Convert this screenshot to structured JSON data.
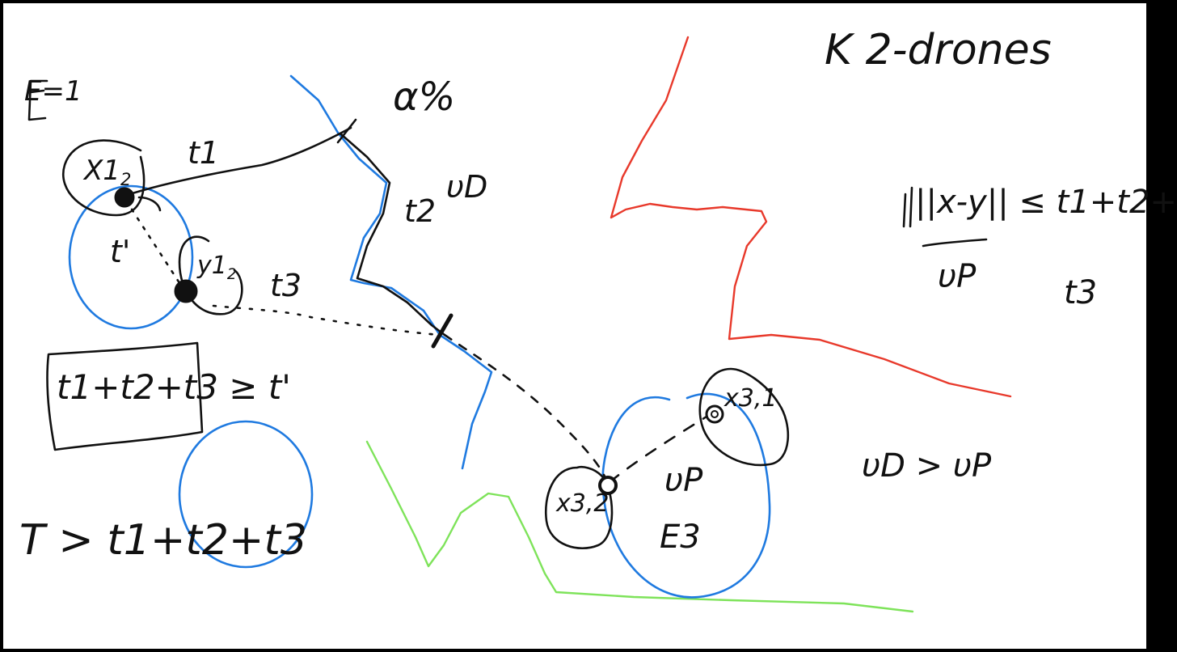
{
  "colors": {
    "ink": "#111111",
    "blue": "#1f7ae0",
    "red": "#e8392b",
    "green": "#7ee35a",
    "background": "#ffffff"
  },
  "labels": {
    "title": "K 2-drones",
    "e1": "E=1",
    "alpha": "α%",
    "vD": "υD",
    "x1": "X1",
    "x1_sub": "2",
    "y1": "y1",
    "y1_sub": "2",
    "t1": "t1",
    "t2": "t2",
    "t3": "t3",
    "tprime": "t'",
    "box_ineq": "t1+t2+t3 ≥ t'",
    "T_ineq": "T > t1+t2+t3",
    "x31": "x3,1",
    "x32": "x3,2",
    "vP": "υP",
    "E3": "E3",
    "speed_ineq": "υD > υP",
    "frac_num": "||x-y|| ≤ t1+t2+",
    "frac_den": "υP",
    "frac_t3": "t3"
  }
}
